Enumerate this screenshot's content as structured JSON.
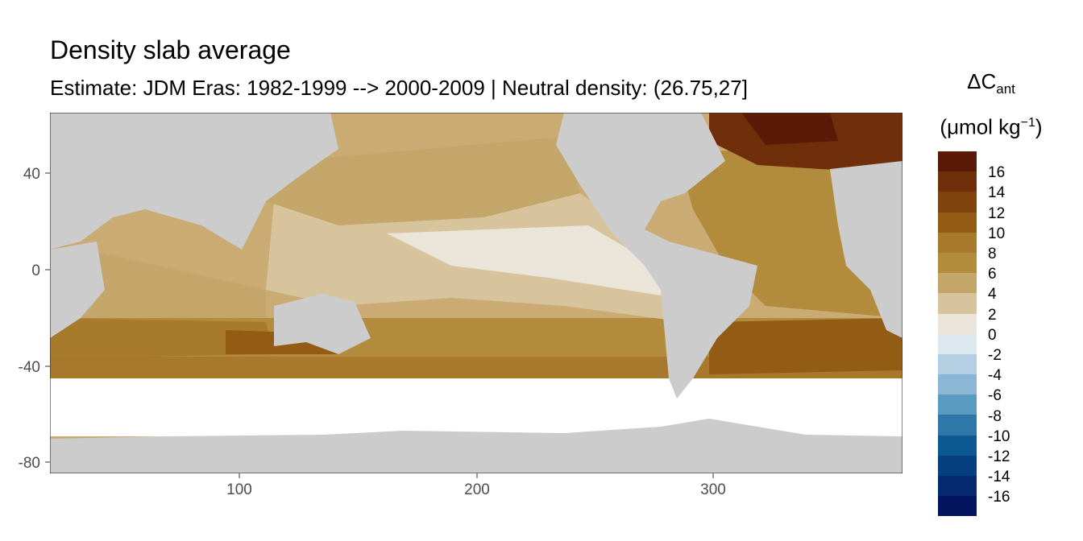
{
  "title": "Density slab average",
  "subtitle": "Estimate: JDM Eras: 1982-1999 --> 2000-2009 | Neutral density: (26.75,27]",
  "legend": {
    "title_main": "ΔC",
    "title_sub": "ant",
    "unit_prefix": "(μmol kg",
    "unit_sup": "−1",
    "unit_suffix": ")",
    "bins": [
      {
        "color": "#5a1a08",
        "label": "16"
      },
      {
        "color": "#6e2f0a",
        "label": "14"
      },
      {
        "color": "#7f440d",
        "label": "12"
      },
      {
        "color": "#935c14",
        "label": "10"
      },
      {
        "color": "#a87a2c",
        "label": "8"
      },
      {
        "color": "#b38b3d",
        "label": "6"
      },
      {
        "color": "#c4a56a",
        "label": "4"
      },
      {
        "color": "#d8c49c",
        "label": "2"
      },
      {
        "color": "#ebe4d8",
        "label": "0"
      },
      {
        "color": "#dde8ee",
        "label": "-2"
      },
      {
        "color": "#b3cfe1",
        "label": "-4"
      },
      {
        "color": "#8bb7d4",
        "label": "-6"
      },
      {
        "color": "#5a9bc2",
        "label": "-8"
      },
      {
        "color": "#2d78a9",
        "label": "-10"
      },
      {
        "color": "#0b5892",
        "label": "-12"
      },
      {
        "color": "#043f80",
        "label": "-14"
      },
      {
        "color": "#052a6f",
        "label": "-16"
      },
      {
        "color": "#03155f",
        "label": ""
      }
    ]
  },
  "map": {
    "land_color": "#cccccc",
    "nodata_color": "#ffffff",
    "x_ticks": [
      "100",
      "200",
      "300"
    ],
    "y_ticks": [
      "40",
      "0",
      "-40",
      "-80"
    ]
  }
}
